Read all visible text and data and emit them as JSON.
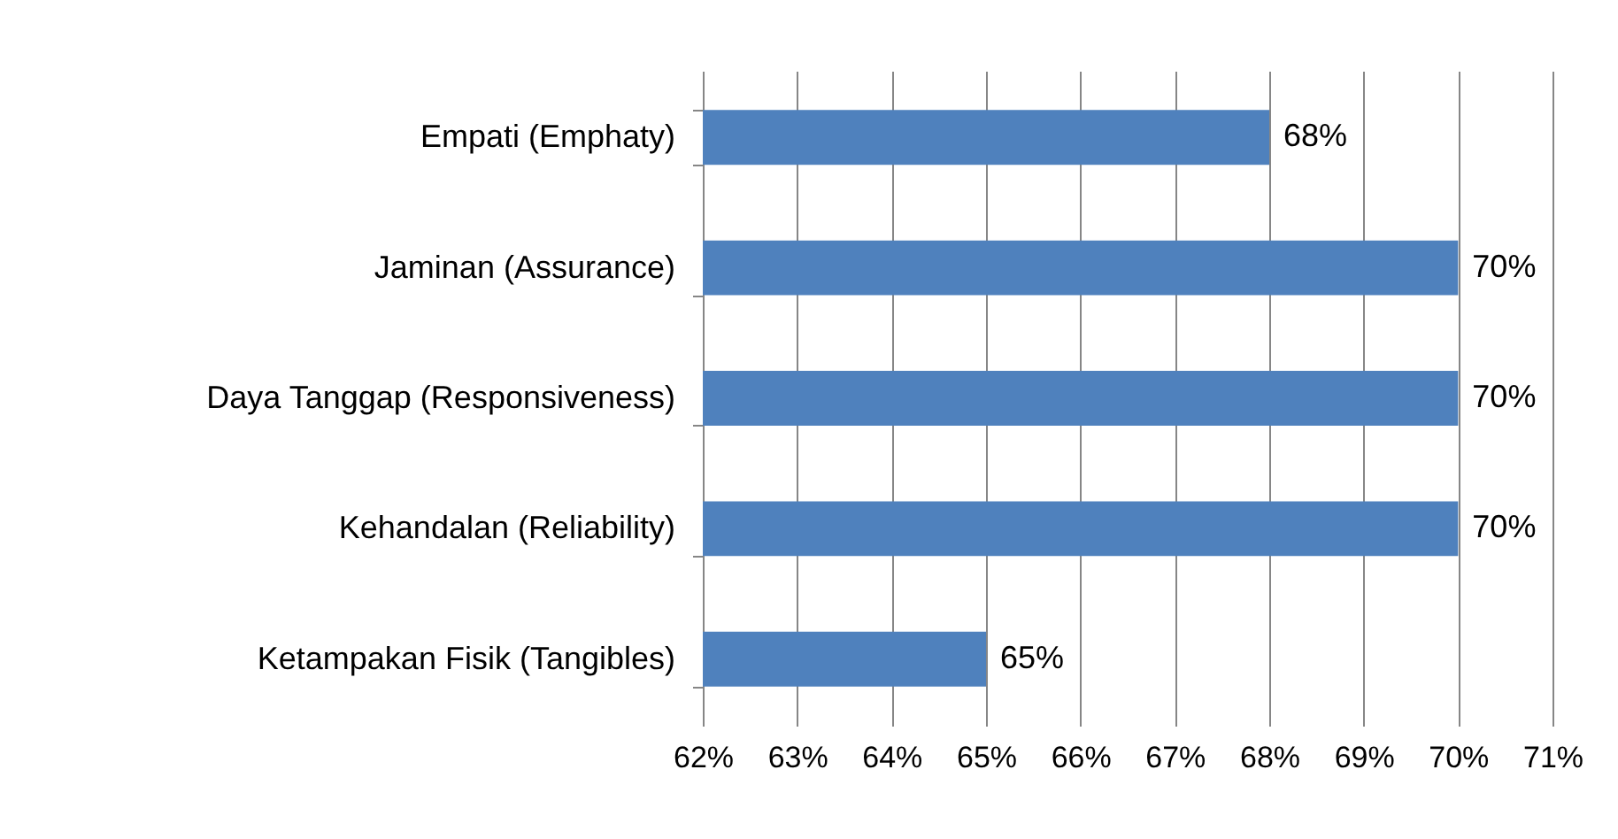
{
  "chart_data": {
    "type": "bar",
    "orientation": "horizontal",
    "categories": [
      "Empati (Emphaty)",
      "Jaminan (Assurance)",
      "Daya Tanggap (Responsiveness)",
      "Kehandalan (Reliability)",
      "Ketampakan Fisik (Tangibles)"
    ],
    "values": [
      68,
      70,
      70,
      70,
      65
    ],
    "value_labels": [
      "68%",
      "70%",
      "70%",
      "70%",
      "65%"
    ],
    "color": "#4f81bd",
    "xlim": [
      62,
      71
    ],
    "xticks": [
      {
        "value": 62,
        "label": "62%"
      },
      {
        "value": 63,
        "label": "63%"
      },
      {
        "value": 64,
        "label": "64%"
      },
      {
        "value": 65,
        "label": "65%"
      },
      {
        "value": 66,
        "label": "66%"
      },
      {
        "value": 67,
        "label": "67%"
      },
      {
        "value": 68,
        "label": "68%"
      },
      {
        "value": 69,
        "label": "69%"
      },
      {
        "value": 70,
        "label": "70%"
      },
      {
        "value": 71,
        "label": "71%"
      }
    ],
    "grid": "x"
  }
}
